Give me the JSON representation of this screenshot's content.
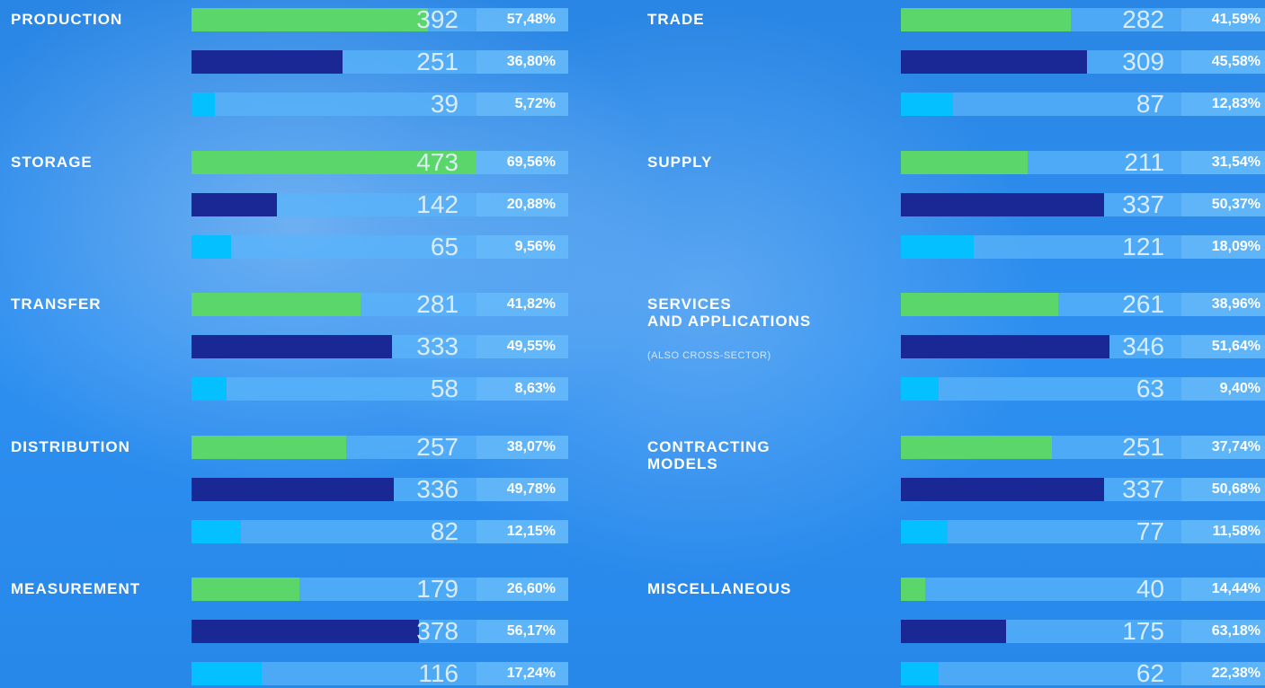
{
  "chart_data": {
    "type": "bar",
    "colors": [
      "#5ad66a",
      "#1a2896",
      "#05c0ff"
    ],
    "xlim": [
      0,
      625
    ],
    "groups": [
      {
        "label": "PRODUCTION",
        "counts": [
          392,
          251,
          39
        ],
        "shares": [
          57.48,
          36.8,
          5.72
        ],
        "share_labels": [
          "57,48%",
          "36,80%",
          "5,72%"
        ]
      },
      {
        "label": "STORAGE",
        "counts": [
          473,
          142,
          65
        ],
        "shares": [
          69.56,
          20.88,
          9.56
        ],
        "share_labels": [
          "69,56%",
          "20,88%",
          "9,56%"
        ]
      },
      {
        "label": "TRANSFER",
        "counts": [
          281,
          333,
          58
        ],
        "shares": [
          41.82,
          49.55,
          8.63
        ],
        "share_labels": [
          "41,82%",
          "49,55%",
          "8,63%"
        ]
      },
      {
        "label": "DISTRIBUTION",
        "counts": [
          257,
          336,
          82
        ],
        "shares": [
          38.07,
          49.78,
          12.15
        ],
        "share_labels": [
          "38,07%",
          "49,78%",
          "12,15%"
        ]
      },
      {
        "label": "MEASUREMENT",
        "counts": [
          179,
          378,
          116
        ],
        "shares": [
          26.6,
          56.17,
          17.24
        ],
        "share_labels": [
          "26,60%",
          "56,17%",
          "17,24%"
        ]
      },
      {
        "label": "TRADE",
        "counts": [
          282,
          309,
          87
        ],
        "shares": [
          41.59,
          45.58,
          12.83
        ],
        "share_labels": [
          "41,59%",
          "45,58%",
          "12,83%"
        ]
      },
      {
        "label": "SUPPLY",
        "counts": [
          211,
          337,
          121
        ],
        "shares": [
          31.54,
          50.37,
          18.09
        ],
        "share_labels": [
          "31,54%",
          "50,37%",
          "18,09%"
        ]
      },
      {
        "label": "SERVICES\nAND APPLICATIONS",
        "note": "(ALSO CROSS-SECTOR)",
        "counts": [
          261,
          346,
          63
        ],
        "shares": [
          38.96,
          51.64,
          9.4
        ],
        "share_labels": [
          "38,96%",
          "51,64%",
          "9,40%"
        ]
      },
      {
        "label": "CONTRACTING\nMODELS",
        "counts": [
          251,
          337,
          77
        ],
        "shares": [
          37.74,
          50.68,
          11.58
        ],
        "share_labels": [
          "37,74%",
          "50,68%",
          "11,58%"
        ]
      },
      {
        "label": "MISCELLANEOUS",
        "counts": [
          40,
          175,
          62
        ],
        "shares": [
          14.44,
          63.18,
          22.38
        ],
        "share_labels": [
          "14,44%",
          "63,18%",
          "22,38%"
        ]
      }
    ]
  }
}
